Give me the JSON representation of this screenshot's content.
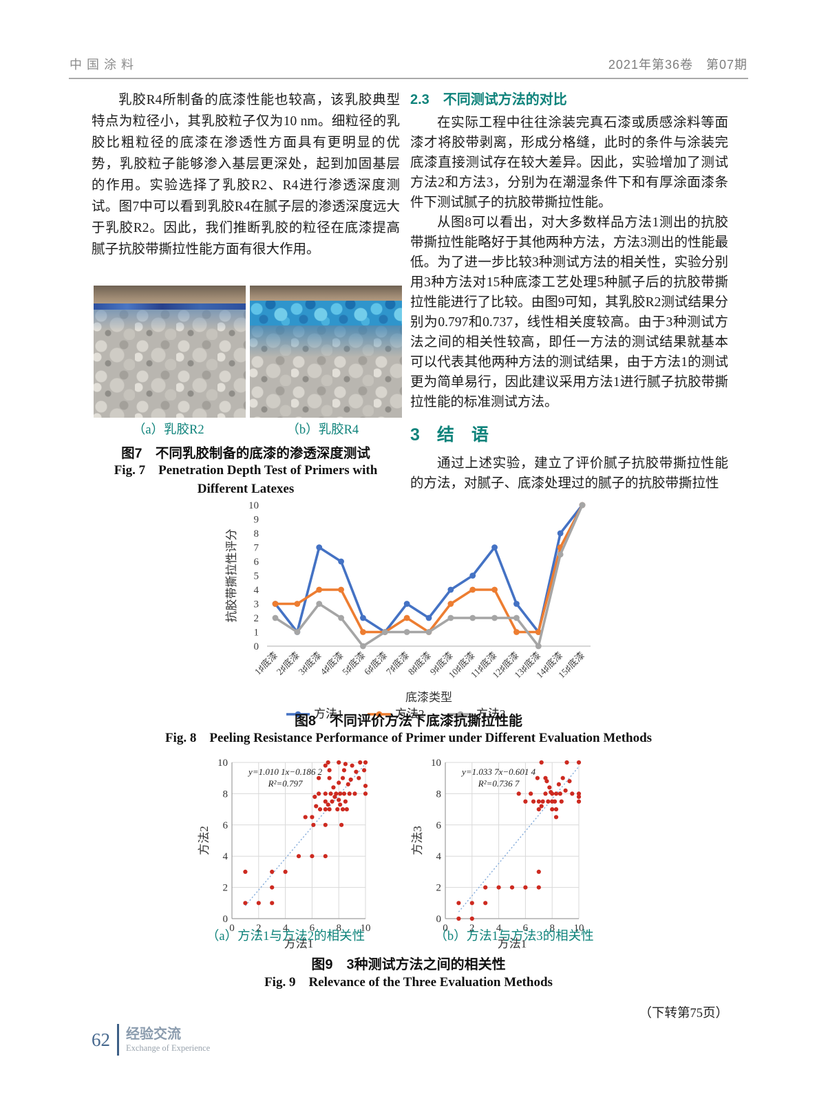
{
  "header": {
    "journal": "中国涂料",
    "issue": "2021年第36卷　第07期"
  },
  "left_column": {
    "para1": "乳胶R4所制备的底漆性能也较高，该乳胶典型特点为粒径小，其乳胶粒子仅为10 nm。细粒径的乳胶比粗粒径的底漆在渗透性方面具有更明显的优势，乳胶粒子能够渗入基层更深处，起到加固基层的作用。实验选择了乳胶R2、R4进行渗透深度测试。图7中可以看到乳胶R4在腻子层的渗透深度远大于乳胶R2。因此，我们推断乳胶的粒径在底漆提高腻子抗胶带撕拉性能方面有很大作用。"
  },
  "fig7": {
    "caption_a": "（a）乳胶R2",
    "caption_b": "（b）乳胶R4",
    "caption_cn": "图7　不同乳胶制备的底漆的渗透深度测试",
    "caption_en": "Fig. 7　Penetration Depth Test of Primers with Different Latexes"
  },
  "right_column": {
    "sec23_title": "2.3　不同测试方法的对比",
    "sec23_para1": "在实际工程中往往涂装完真石漆或质感涂料等面漆才将胶带剥离，形成分格缝，此时的条件与涂装完底漆直接测试存在较大差异。因此，实验增加了测试方法2和方法3，分别为在潮湿条件下和有厚涂面漆条件下测试腻子的抗胶带撕拉性能。",
    "sec23_para2": "从图8可以看出，对大多数样品方法1测出的抗胶带撕拉性能略好于其他两种方法，方法3测出的性能最低。为了进一步比较3种测试方法的相关性，实验分别用3种方法对15种底漆工艺处理5种腻子后的抗胶带撕拉性能进行了比较。由图9可知，其乳胶R2测试结果分别为0.797和0.737，线性相关度较高。由于3种测试方法之间的相关性较高，即任一方法的测试结果就基本可以代表其他两种方法的测试结果，由于方法1的测试更为简单易行，因此建议采用方法1进行腻子抗胶带撕拉性能的标准测试方法。",
    "sec3_title": "3　结　语",
    "sec3_para": "通过上述实验，建立了评价腻子抗胶带撕拉性能的方法，对腻子、底漆处理过的腻子的抗胶带撕拉性"
  },
  "fig8": {
    "caption_cn": "图8　不同评价方法下底漆抗撕拉性能",
    "caption_en": "Fig. 8　Peeling Resistance Performance of Primer under Different Evaluation Methods"
  },
  "fig9": {
    "caption_a": "（a）方法1与方法2的相关性",
    "caption_b": "（b）方法1与方法3的相关性",
    "caption_cn": "图9　3种测试方法之间的相关性",
    "caption_en": "Fig. 9　Relevance of the Three Evaluation Methods"
  },
  "footer": {
    "turn_note": "（下转第75页）",
    "page_no": "62",
    "column_cn": "经验交流",
    "column_en": "Exchange of Experience"
  },
  "chart_data": [
    {
      "type": "line",
      "title": "不同评价方法下底漆抗撕拉性能",
      "categories": [
        "1♯底漆",
        "2♯底漆",
        "3♯底漆",
        "4♯底漆",
        "5♯底漆",
        "6♯底漆",
        "7♯底漆",
        "8♯底漆",
        "9♯底漆",
        "10♯底漆",
        "11♯底漆",
        "12♯底漆",
        "13♯底漆",
        "14♯底漆",
        "15♯底漆"
      ],
      "series": [
        {
          "name": "方法1",
          "color": "#4472C4",
          "values": [
            3,
            1,
            7,
            6,
            2,
            1,
            3,
            2,
            4,
            5,
            7,
            3,
            1,
            8,
            10
          ]
        },
        {
          "name": "方法2",
          "color": "#ED7D31",
          "values": [
            3,
            3,
            4,
            4,
            1,
            1,
            2,
            1,
            3,
            4,
            4,
            1,
            1,
            7,
            10
          ]
        },
        {
          "name": "方法3",
          "color": "#A5A5A5",
          "values": [
            2,
            1,
            3,
            2,
            0,
            1,
            1,
            1,
            2,
            2,
            2,
            2,
            0,
            6.5,
            10
          ]
        }
      ],
      "xlabel": "底漆类型",
      "ylabel": "抗胶带撕拉性评分",
      "ylim": [
        0,
        10
      ],
      "ytick_step": 1,
      "grid": false,
      "legend_position": "bottom"
    },
    {
      "type": "scatter",
      "xlabel": "方法1",
      "ylabel": "方法2",
      "xlim": [
        0,
        10
      ],
      "ylim": [
        0,
        10
      ],
      "ticks": [
        0,
        2,
        4,
        6,
        8,
        10
      ],
      "equation": "y=1.010 1x−0.186 2",
      "r2": "R²=0.797",
      "slope": 1.0101,
      "intercept": -0.1862,
      "point_color": "#cd2a20",
      "trend_color": "#7fa8d9",
      "points": [
        [
          1,
          1
        ],
        [
          1,
          3
        ],
        [
          2,
          1
        ],
        [
          3,
          1
        ],
        [
          3,
          2
        ],
        [
          3,
          3
        ],
        [
          4,
          3
        ],
        [
          5,
          4
        ],
        [
          6,
          4
        ],
        [
          7,
          4
        ],
        [
          5.5,
          6.5
        ],
        [
          6,
          6.5
        ],
        [
          6.1,
          6
        ],
        [
          7,
          6
        ],
        [
          8.2,
          6
        ],
        [
          6.3,
          7.2
        ],
        [
          6.6,
          7
        ],
        [
          7,
          7
        ],
        [
          7.3,
          7
        ],
        [
          7.9,
          7
        ],
        [
          8.3,
          7
        ],
        [
          8.6,
          7
        ],
        [
          7.2,
          7.3
        ],
        [
          8.1,
          7.3
        ],
        [
          7,
          7.5
        ],
        [
          7.5,
          7.5
        ],
        [
          8,
          7.6
        ],
        [
          8.5,
          7.5
        ],
        [
          7.7,
          7.8
        ],
        [
          6.2,
          7.8
        ],
        [
          6.5,
          8
        ],
        [
          7,
          8
        ],
        [
          7.4,
          8
        ],
        [
          7.8,
          8
        ],
        [
          8.1,
          8
        ],
        [
          8.4,
          8
        ],
        [
          8.8,
          8
        ],
        [
          9.2,
          8
        ],
        [
          10,
          8
        ],
        [
          7.6,
          8.4
        ],
        [
          8,
          8.7
        ],
        [
          8.7,
          8.6
        ],
        [
          10,
          8.5
        ],
        [
          6.5,
          9
        ],
        [
          7.3,
          9
        ],
        [
          8.3,
          9
        ],
        [
          9.5,
          9
        ],
        [
          8.9,
          8.9
        ],
        [
          7.3,
          9.5
        ],
        [
          8.4,
          9.5
        ],
        [
          9.9,
          9.5
        ],
        [
          9.3,
          9.4
        ],
        [
          7,
          9.8
        ],
        [
          7.2,
          10
        ],
        [
          8,
          10
        ],
        [
          8.5,
          9.9
        ],
        [
          9,
          9.8
        ],
        [
          9.6,
          10
        ],
        [
          10,
          10
        ]
      ]
    },
    {
      "type": "scatter",
      "xlabel": "方法1",
      "ylabel": "方法3",
      "xlim": [
        0,
        10
      ],
      "ylim": [
        0,
        10
      ],
      "ticks": [
        0,
        2,
        4,
        6,
        8,
        10
      ],
      "equation": "y=1.033 7x−0.601 4",
      "r2": "R²=0.736 7",
      "slope": 1.0337,
      "intercept": -0.6014,
      "point_color": "#cd2a20",
      "trend_color": "#7fa8d9",
      "points": [
        [
          1,
          0
        ],
        [
          1,
          1
        ],
        [
          2,
          0
        ],
        [
          2,
          1
        ],
        [
          3,
          1
        ],
        [
          3,
          2
        ],
        [
          4,
          2
        ],
        [
          5,
          2
        ],
        [
          6,
          2
        ],
        [
          7,
          2
        ],
        [
          7,
          3
        ],
        [
          5.5,
          8
        ],
        [
          6,
          7.5
        ],
        [
          6.4,
          8
        ],
        [
          6.6,
          7.5
        ],
        [
          7,
          7.5
        ],
        [
          7,
          7
        ],
        [
          7.2,
          7.2
        ],
        [
          7.3,
          7.5
        ],
        [
          6.9,
          9
        ],
        [
          7.5,
          9
        ],
        [
          7.6,
          8.8
        ],
        [
          7.5,
          8
        ],
        [
          7.7,
          7.5
        ],
        [
          7.8,
          8.4
        ],
        [
          7.9,
          8.1
        ],
        [
          8,
          8
        ],
        [
          8,
          7.5
        ],
        [
          8,
          7
        ],
        [
          8.2,
          7.5
        ],
        [
          8.3,
          7
        ],
        [
          8.3,
          8
        ],
        [
          8.3,
          6.5
        ],
        [
          8.5,
          8.6
        ],
        [
          8.6,
          8
        ],
        [
          8.7,
          7.5
        ],
        [
          8.8,
          9
        ],
        [
          9,
          8.2
        ],
        [
          9.1,
          10
        ],
        [
          9.3,
          8.8
        ],
        [
          9.5,
          8
        ],
        [
          7.2,
          10
        ],
        [
          10,
          10
        ],
        [
          10,
          8
        ],
        [
          10,
          7.8
        ],
        [
          10,
          7.5
        ]
      ]
    }
  ]
}
